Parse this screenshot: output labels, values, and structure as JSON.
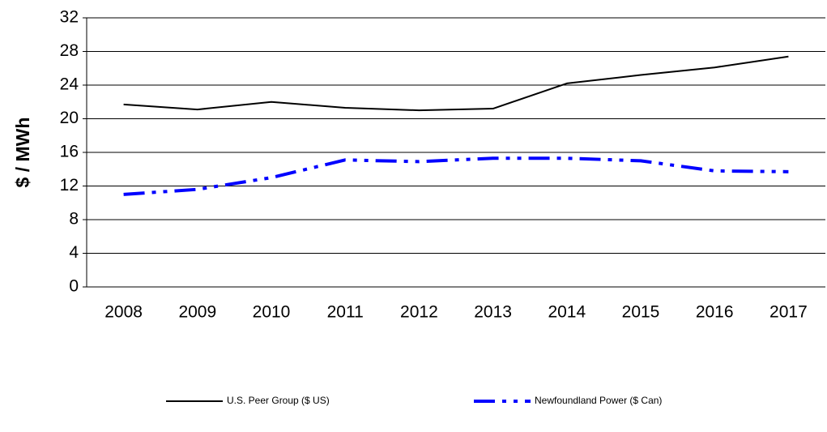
{
  "chart_data": {
    "type": "line",
    "y_label": "$ / MWh",
    "categories": [
      "2008",
      "2009",
      "2010",
      "2011",
      "2012",
      "2013",
      "2014",
      "2015",
      "2016",
      "2017"
    ],
    "series": [
      {
        "name": "U.S. Peer Group ($ US)",
        "color": "#000000",
        "line_style": "solid",
        "values": [
          21.7,
          21.1,
          22.0,
          21.3,
          21.0,
          21.2,
          24.2,
          25.2,
          26.1,
          27.4
        ]
      },
      {
        "name": "Newfoundland Power ($ Can)",
        "color": "#0000ff",
        "line_style": "dash-dot-dot",
        "values": [
          11.0,
          11.6,
          13.0,
          15.1,
          14.9,
          15.3,
          15.3,
          15.0,
          13.8,
          13.7
        ]
      }
    ],
    "ylim": [
      0,
      32
    ],
    "yticks": [
      0,
      4,
      8,
      12,
      16,
      20,
      24,
      28,
      32
    ],
    "grid": true,
    "legend": "bottom"
  }
}
